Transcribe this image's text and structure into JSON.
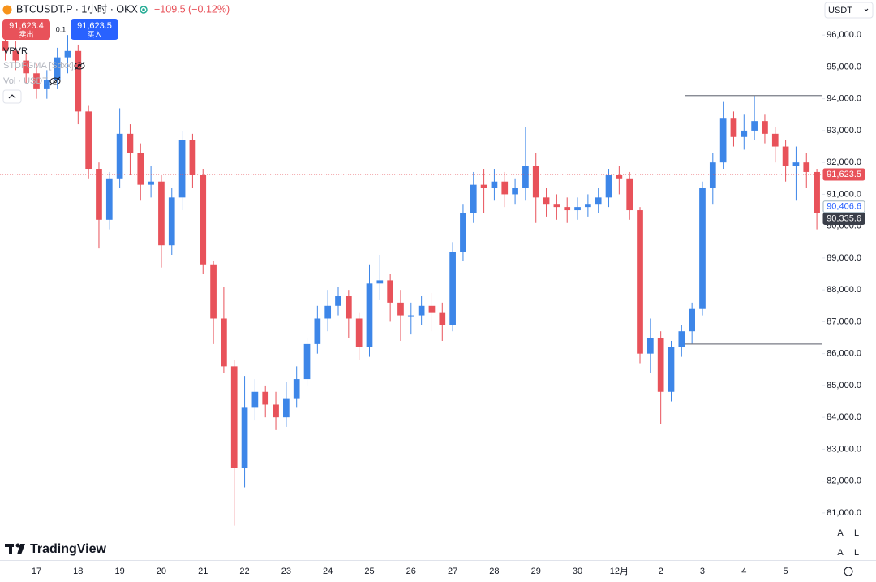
{
  "header": {
    "symbol": "BTCUSDT.P · 1小时 · OKX",
    "change": "−109.5 (−0.12%)",
    "sell_price": "91,623.4",
    "sell_label": "卖出",
    "quantity": "0.1",
    "buy_price": "91,623.5",
    "buy_label": "买入",
    "indicators": [
      "VPVR",
      "STDFGMA [Sdxx]",
      "Vol · USDT"
    ],
    "currency": "USDT",
    "brand": "TradingView",
    "scale_buttons": [
      "A",
      "L"
    ]
  },
  "chart_data": {
    "type": "candlestick",
    "up_color": "#3d86e8",
    "down_color": "#e8525a",
    "categories": [
      null,
      null,
      null,
      "17",
      null,
      null,
      null,
      "18",
      null,
      null,
      null,
      "19",
      null,
      null,
      null,
      "20",
      null,
      null,
      null,
      "21",
      null,
      null,
      null,
      "22",
      null,
      null,
      null,
      "23",
      null,
      null,
      null,
      "24",
      null,
      null,
      null,
      "25",
      null,
      null,
      null,
      "26",
      null,
      null,
      null,
      "27",
      null,
      null,
      null,
      "28",
      null,
      null,
      null,
      "29",
      null,
      null,
      null,
      "30",
      null,
      null,
      null,
      "12月",
      null,
      null,
      null,
      "2",
      null,
      null,
      null,
      "3",
      null,
      null,
      null,
      "4",
      null,
      null,
      null,
      "5",
      null,
      null,
      null
    ],
    "open": [
      95800,
      95500,
      95200,
      94800,
      94300,
      94600,
      95300,
      95500,
      93600,
      91800,
      90200,
      91500,
      92900,
      92300,
      91300,
      91400,
      89400,
      90900,
      92700,
      91600,
      88800,
      87100,
      85600,
      82400,
      84300,
      84800,
      84400,
      84000,
      84600,
      85200,
      86300,
      87100,
      87500,
      87800,
      87100,
      86200,
      88200,
      88300,
      87600,
      87200,
      87200,
      87500,
      87300,
      86900,
      89200,
      90400,
      91300,
      91200,
      91400,
      91000,
      91200,
      91900,
      90900,
      90700,
      90600,
      90500,
      90600,
      90700,
      90900,
      91600,
      91500,
      90500,
      86000,
      86500,
      84800,
      86200,
      86700,
      87400,
      91200,
      92000,
      93400,
      92800,
      93000,
      93300,
      92900,
      92500,
      91900,
      92000,
      91700
    ],
    "high": [
      96100,
      95800,
      95400,
      95100,
      94900,
      95600,
      96000,
      95700,
      93800,
      92000,
      91700,
      93700,
      93200,
      92600,
      91900,
      91600,
      91200,
      93000,
      92900,
      91800,
      88900,
      88100,
      85800,
      85300,
      85200,
      85000,
      84800,
      85100,
      85600,
      86500,
      87500,
      88000,
      88100,
      88000,
      87300,
      88800,
      89100,
      88500,
      88000,
      87600,
      87800,
      87900,
      87600,
      89500,
      90700,
      91700,
      91800,
      91800,
      91700,
      91500,
      93100,
      92300,
      91200,
      91000,
      90900,
      90900,
      91000,
      91200,
      91800,
      91900,
      91700,
      90600,
      87100,
      86700,
      86400,
      86900,
      87600,
      91400,
      92300,
      93900,
      93600,
      93500,
      94100,
      93500,
      93100,
      92700,
      92500,
      92300,
      91800
    ],
    "low": [
      95200,
      94900,
      94500,
      94000,
      94000,
      94300,
      94800,
      93200,
      91500,
      89300,
      89900,
      91200,
      91600,
      90800,
      90900,
      88700,
      89100,
      90500,
      91200,
      88500,
      86300,
      85400,
      80600,
      81800,
      83900,
      84000,
      83600,
      83700,
      84300,
      85000,
      86000,
      86700,
      87200,
      86500,
      85800,
      85900,
      87700,
      87000,
      86400,
      86600,
      86900,
      86700,
      86400,
      86700,
      88900,
      90100,
      90400,
      90800,
      90600,
      90700,
      90800,
      90100,
      90300,
      90200,
      90100,
      90200,
      90300,
      90400,
      90600,
      91000,
      90200,
      85700,
      85400,
      83800,
      84500,
      85900,
      86300,
      87200,
      90700,
      91800,
      92500,
      92400,
      92700,
      92600,
      92000,
      91400,
      90800,
      91200,
      89900
    ],
    "close": [
      95500,
      95200,
      94800,
      94300,
      94600,
      95300,
      95500,
      93600,
      91800,
      90200,
      91500,
      92900,
      92300,
      91300,
      91400,
      89400,
      90900,
      92700,
      91600,
      88800,
      87100,
      85600,
      82400,
      84300,
      84800,
      84400,
      84000,
      84600,
      85200,
      86300,
      87100,
      87500,
      87800,
      87100,
      86200,
      88200,
      88300,
      87600,
      87200,
      87200,
      87500,
      87300,
      86900,
      89200,
      90400,
      91300,
      91200,
      91400,
      91000,
      91200,
      91900,
      90900,
      90700,
      90600,
      90500,
      90600,
      90700,
      90900,
      91600,
      91500,
      90500,
      86000,
      86500,
      84800,
      86200,
      86700,
      87400,
      91200,
      92000,
      93400,
      92800,
      93000,
      93300,
      92900,
      92500,
      91900,
      92000,
      91700,
      90400
    ],
    "ylim": [
      79520,
      97100
    ],
    "yticks": [
      {
        "value": 81000,
        "label": "81,000.0"
      },
      {
        "value": 82000,
        "label": "82,000.0"
      },
      {
        "value": 83000,
        "label": "83,000.0"
      },
      {
        "value": 84000,
        "label": "84,000.0"
      },
      {
        "value": 85000,
        "label": "85,000.0"
      },
      {
        "value": 86000,
        "label": "86,000.0"
      },
      {
        "value": 87000,
        "label": "87,000.0"
      },
      {
        "value": 88000,
        "label": "88,000.0"
      },
      {
        "value": 89000,
        "label": "89,000.0"
      },
      {
        "value": 90000,
        "label": "90,000.0"
      },
      {
        "value": 91000,
        "label": "91,000.0"
      },
      {
        "value": 92000,
        "label": "92,000.0"
      },
      {
        "value": 93000,
        "label": "93,000.0"
      },
      {
        "value": 94000,
        "label": "94,000.0"
      },
      {
        "value": 95000,
        "label": "95,000.0"
      },
      {
        "value": 96000,
        "label": "96,000.0"
      }
    ],
    "price_labels": [
      {
        "value": 91623.5,
        "label": "91,623.5"
      },
      {
        "value": 90406.6,
        "label": "90,406.6"
      },
      {
        "value": 90335.6,
        "label": "90,335.6"
      }
    ],
    "horizontal_lines": [
      94100,
      86300
    ],
    "grid": false
  }
}
